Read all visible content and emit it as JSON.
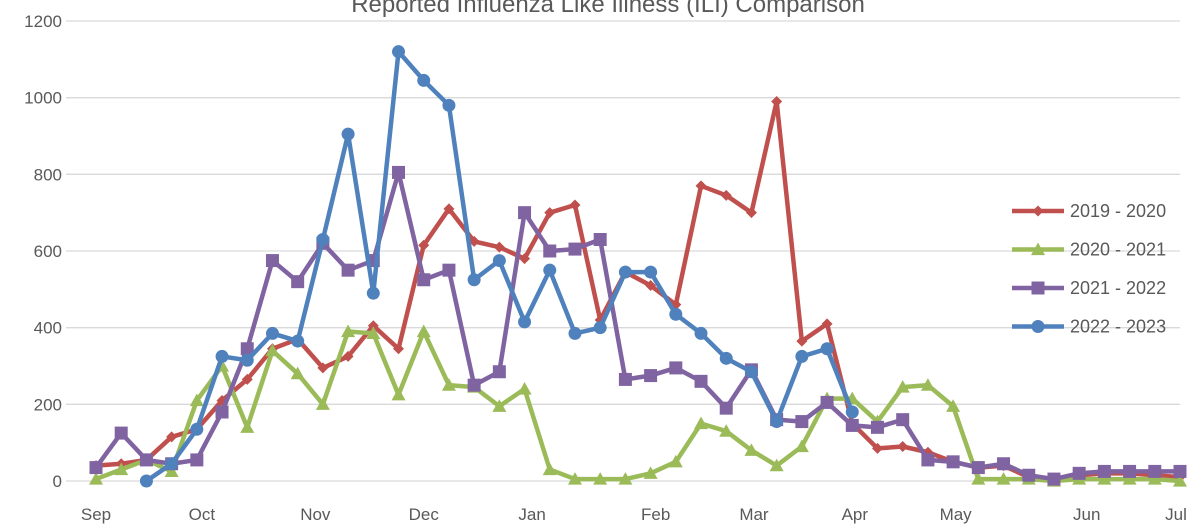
{
  "chart_data": {
    "type": "line",
    "title": "Reported Influenza Like Illness (ILI) Comparison",
    "xlabel": "",
    "ylabel": "",
    "ylim": [
      0,
      1200
    ],
    "yticks": [
      "0",
      "200",
      "400",
      "600",
      "800",
      "1000",
      "1200"
    ],
    "grid": true,
    "legend_position": "right",
    "week_axis": {
      "first_week_label": "Sep",
      "last_week_label": "Jul",
      "week_count": 44
    },
    "months": [
      {
        "label": "Sep",
        "week": 1
      },
      {
        "label": "Oct",
        "week": 5.2
      },
      {
        "label": "Nov",
        "week": 9.7
      },
      {
        "label": "Dec",
        "week": 14
      },
      {
        "label": "Jan",
        "week": 18.3
      },
      {
        "label": "Feb",
        "week": 23.2
      },
      {
        "label": "Mar",
        "week": 27.1
      },
      {
        "label": "Apr",
        "week": 31.1
      },
      {
        "label": "May",
        "week": 35.1
      },
      {
        "label": "Jun",
        "week": 40.3
      },
      {
        "label": "Jul",
        "week": 44.3
      }
    ],
    "series": [
      {
        "name": "2019 - 2020",
        "color": "#c0504d",
        "marker": "diamond",
        "start_week": 1,
        "values": [
          40,
          45,
          55,
          115,
          135,
          210,
          265,
          345,
          370,
          295,
          325,
          405,
          345,
          615,
          710,
          625,
          610,
          580,
          700,
          720,
          420,
          545,
          510,
          460,
          770,
          745,
          700,
          990,
          365,
          410,
          150,
          85,
          90,
          75,
          50,
          35,
          40,
          10,
          5,
          15,
          20,
          20,
          15,
          10
        ]
      },
      {
        "name": "2020 - 2021",
        "color": "#9bbb59",
        "marker": "triangle",
        "start_week": 1,
        "values": [
          5,
          30,
          55,
          25,
          210,
          300,
          140,
          340,
          280,
          200,
          390,
          385,
          225,
          390,
          250,
          245,
          195,
          240,
          30,
          5,
          5,
          5,
          20,
          50,
          150,
          130,
          80,
          40,
          90,
          215,
          215,
          155,
          245,
          250,
          195,
          5,
          5,
          5,
          0,
          5,
          5,
          5,
          5,
          0
        ]
      },
      {
        "name": "2021 - 2022",
        "color": "#8064a2",
        "marker": "square",
        "start_week": 1,
        "values": [
          35,
          125,
          55,
          45,
          55,
          180,
          345,
          575,
          520,
          620,
          550,
          575,
          805,
          525,
          550,
          250,
          285,
          700,
          600,
          605,
          630,
          265,
          275,
          295,
          260,
          190,
          290,
          160,
          155,
          205,
          145,
          140,
          160,
          55,
          50,
          35,
          45,
          15,
          5,
          20,
          25,
          25,
          25,
          25
        ]
      },
      {
        "name": "2022 - 2023",
        "color": "#4f81bd",
        "marker": "circle",
        "start_week": 3,
        "values": [
          0,
          45,
          135,
          325,
          315,
          385,
          365,
          630,
          905,
          490,
          1120,
          1045,
          980,
          525,
          575,
          415,
          550,
          385,
          400,
          545,
          545,
          435,
          385,
          320,
          285,
          155,
          325,
          345,
          180
        ]
      }
    ]
  }
}
